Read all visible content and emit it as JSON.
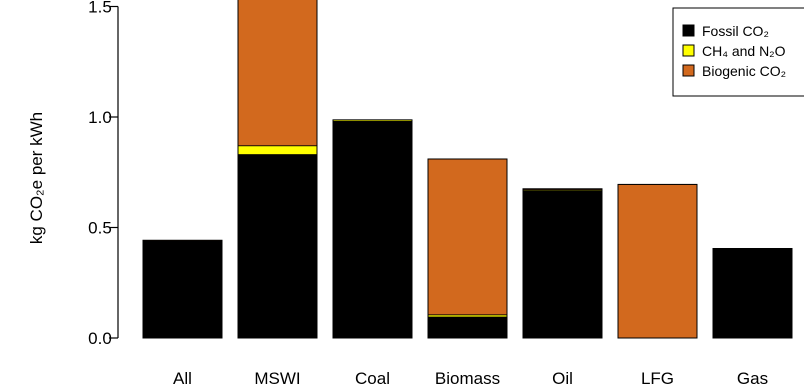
{
  "chart_data": {
    "type": "bar",
    "stacked": true,
    "categories": [
      "All",
      "MSWI",
      "Coal",
      "Biomass",
      "Oil",
      "LFG",
      "Gas"
    ],
    "series": [
      {
        "name": "Fossil CO₂",
        "color": "#000000",
        "values": [
          0.435,
          0.83,
          0.98,
          0.095,
          0.665,
          0.0,
          0.405
        ]
      },
      {
        "name": "CH₄ and N₂O",
        "color": "#ffff00",
        "values": [
          0.003,
          0.04,
          0.007,
          0.01,
          0.005,
          0.0,
          0.0
        ]
      },
      {
        "name": "Biogenic CO₂",
        "color": "#d2691e",
        "values": [
          0.004,
          0.85,
          0.0,
          0.705,
          0.005,
          0.695,
          0.0
        ]
      }
    ],
    "ylabel": "kg CO₂e per kWh",
    "yticks": [
      "0.0",
      "0.5",
      "1.0",
      "1.5"
    ],
    "ytick_values": [
      0.0,
      0.5,
      1.0,
      1.5
    ],
    "ylim": [
      0,
      1.72
    ],
    "legend_position": "top-right",
    "grid": false
  }
}
